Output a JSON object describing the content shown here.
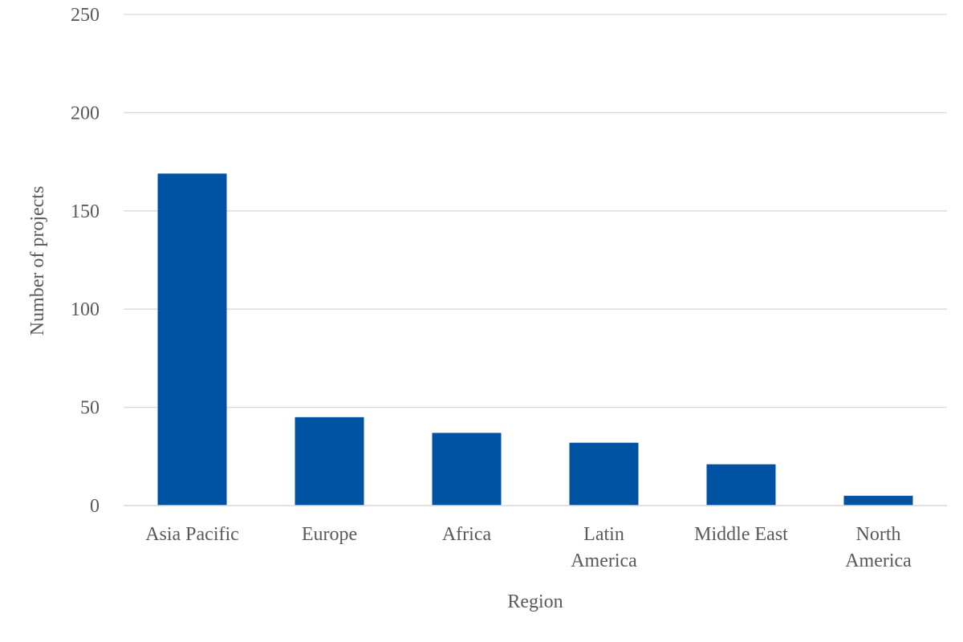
{
  "chart_data": {
    "type": "bar",
    "title": "",
    "xlabel": "Region",
    "ylabel": "Number of projects",
    "categories": [
      [
        "Asia Pacific"
      ],
      [
        "Europe"
      ],
      [
        "Africa"
      ],
      [
        "Latin",
        "America"
      ],
      [
        "Middle East"
      ],
      [
        "North",
        "America"
      ]
    ],
    "values": [
      169,
      45,
      37,
      32,
      21,
      5
    ],
    "ylim": [
      0,
      250
    ],
    "yticks": [
      "0",
      "50",
      "100",
      "150",
      "200",
      "250"
    ],
    "grid": true,
    "legend": "none",
    "bar_color": "#0052A2",
    "grid_color": "#d9d9d9",
    "text_color": "#595959"
  }
}
